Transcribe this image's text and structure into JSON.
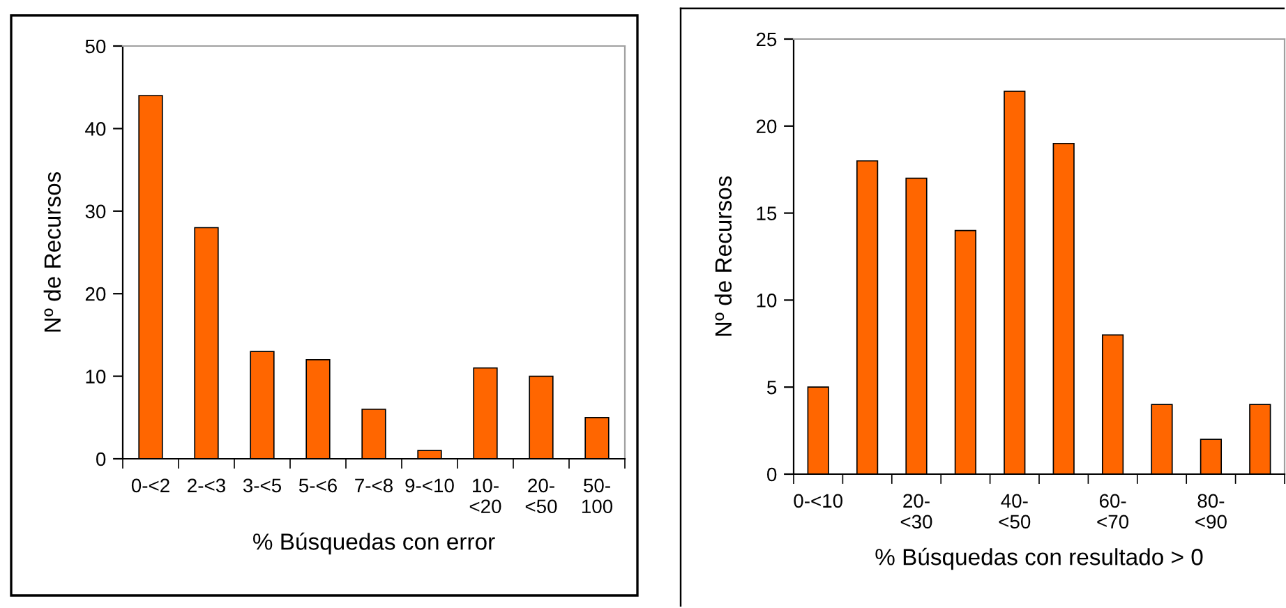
{
  "chart_data": [
    {
      "type": "bar",
      "xlabel": "% Búsquedas con error",
      "ylabel": "Nº de Recursos",
      "categories": [
        "0-<2",
        "2-<3",
        "3-<5",
        "5-<6",
        "7-<8",
        "9-<10",
        "10-\n<20",
        "20-\n<50",
        "50-\n100"
      ],
      "values": [
        44,
        28,
        13,
        12,
        6,
        1,
        11,
        10,
        5
      ],
      "color": "#ff6600",
      "ylim": [
        0,
        50
      ],
      "yticks": [
        0,
        10,
        20,
        30,
        40,
        50
      ],
      "grid": false,
      "legend": false
    },
    {
      "type": "bar",
      "xlabel": "% Búsquedas con resultado > 0",
      "ylabel": "Nº de Recursos",
      "categories": [
        "0-<10",
        null,
        "20-\n<30",
        null,
        "40-\n<50",
        null,
        "60-\n<70",
        null,
        "80-\n<90",
        null
      ],
      "values": [
        5,
        18,
        17,
        14,
        22,
        19,
        8,
        4,
        2,
        4
      ],
      "color": "#ff6600",
      "ylim": [
        0,
        25
      ],
      "yticks": [
        0,
        5,
        10,
        15,
        20,
        25
      ],
      "grid": false,
      "legend": false
    }
  ]
}
